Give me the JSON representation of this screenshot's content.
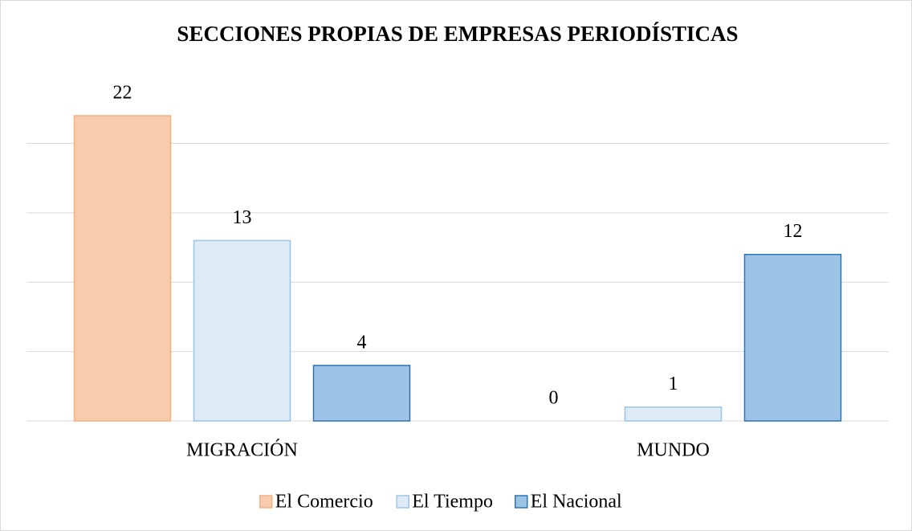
{
  "chart_data": {
    "type": "bar",
    "title": "SECCIONES PROPIAS DE EMPRESAS PERIODÍSTICAS",
    "categories": [
      "MIGRACIÓN",
      "MUNDO"
    ],
    "series": [
      {
        "name": "El Comercio",
        "color": "#f8cbad",
        "edge_color": "#f4b183",
        "values": [
          22,
          0
        ]
      },
      {
        "name": "El Tiempo",
        "color": "#deebf7",
        "edge_color": "#9dc3e6",
        "values": [
          13,
          1
        ]
      },
      {
        "name": "El Nacional",
        "color": "#9dc3e6",
        "edge_color": "#2e75b6",
        "values": [
          4,
          12
        ]
      }
    ],
    "ylim": [
      0,
      22
    ],
    "yticks": [
      0,
      5,
      10,
      15,
      20
    ],
    "grid": true,
    "legend": "bottom"
  }
}
